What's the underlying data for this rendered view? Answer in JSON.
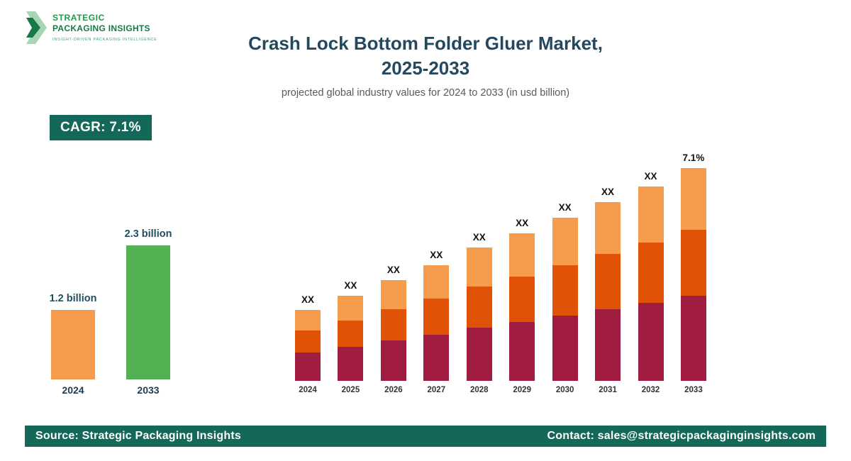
{
  "header": {
    "logo": {
      "line1": "STRATEGIC",
      "line2": "PACKAGING INSIGHTS",
      "tagline": "INSIGHT-DRIVEN PACKAGING INTELLIGENCE"
    },
    "title_line1": "Crash Lock Bottom Folder Gluer Market,",
    "title_line2": "2025-2033",
    "subtitle": "projected global industry values for 2024 to 2033 (in usd billion)"
  },
  "cagr": {
    "label": "CAGR: 7.1%"
  },
  "colors": {
    "teal_dark": "#14685a",
    "title_navy": "#24495e",
    "label_navy": "#1f4e5f",
    "orange_light": "#f59c4d",
    "orange_dark": "#e05206",
    "maroon": "#a11c41",
    "green": "#52b152",
    "logo_green": "#1d9a4e"
  },
  "chart_data": [
    {
      "type": "bar",
      "name": "market-growth-summary",
      "title": "",
      "categories": [
        "2024",
        "2033"
      ],
      "values": [
        1.2,
        2.3
      ],
      "value_labels": [
        "1.2 billion",
        "2.3 billion"
      ],
      "bar_colors": [
        "#f59c4d",
        "#52b152"
      ],
      "unit": "usd billion",
      "ylim": [
        0,
        2.5
      ],
      "grid": false,
      "legend": "none"
    },
    {
      "type": "bar",
      "subtype": "stacked",
      "name": "projected-values-by-year",
      "title": "",
      "categories": [
        "2024",
        "2025",
        "2026",
        "2027",
        "2028",
        "2029",
        "2030",
        "2031",
        "2032",
        "2033"
      ],
      "series": [
        {
          "name": "segment-bottom",
          "color": "#a11c41",
          "values": [
            40,
            48,
            57,
            65,
            75,
            83,
            92,
            101,
            110,
            120
          ]
        },
        {
          "name": "segment-middle",
          "color": "#e05206",
          "values": [
            31,
            37,
            44,
            51,
            58,
            64,
            71,
            78,
            85,
            93
          ]
        },
        {
          "name": "segment-top",
          "color": "#f59c4d",
          "values": [
            29,
            35,
            41,
            47,
            55,
            61,
            67,
            73,
            79,
            87
          ]
        }
      ],
      "bar_labels": [
        "XX",
        "XX",
        "XX",
        "XX",
        "XX",
        "XX",
        "XX",
        "XX",
        "XX",
        "7.1%"
      ],
      "unit": "relative height (actual values masked as XX in source image)",
      "ylim": [
        0,
        320
      ],
      "grid": false,
      "legend": "none"
    }
  ],
  "footer": {
    "source": "Source: Strategic Packaging Insights",
    "contact": "Contact: sales@strategicpackaginginsights.com"
  }
}
